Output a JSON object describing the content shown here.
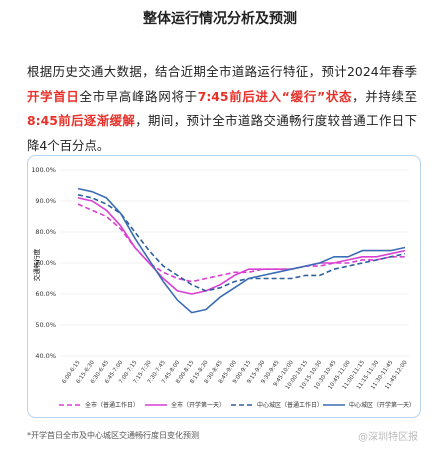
{
  "header": {
    "title": "整体运行情况分析及预测"
  },
  "intro": [
    "根据历史交通大数据，结合近期全市道路运行特征，预计2024年春季",
    "开学首日",
    "全市早高峰路网将于",
    "7:45前后进入“缓行”状态",
    "，并持续至",
    "8:45前后逐渐缓解",
    "，期间，预计全市道路交通畅行度较普通工作日下降4个百分点。"
  ],
  "chart_data": {
    "type": "line",
    "y_label": "交通畅行度",
    "categories": [
      "6:00-6:15",
      "6:15-6:30",
      "6:30-6:45",
      "6:45-7:00",
      "7:00-7:15",
      "7:15-7:30",
      "7:30-7:45",
      "7:45-8:00",
      "8:00-8:15",
      "8:15-8:30",
      "8:30-8:45",
      "8:45-9:00",
      "9:00-9:15",
      "9:15-9:30",
      "9:30-9:45",
      "9:45-10:00",
      "10:00-10:15",
      "10:15-10:30",
      "10:30-10:45",
      "10:45-11:00",
      "11:00-11:15",
      "11:15-11:30",
      "11:30-11:45",
      "11:45-12:00"
    ],
    "ylim": [
      40,
      100
    ],
    "yticks": [
      {
        "value": 40,
        "label": "40.0%"
      },
      {
        "value": 50,
        "label": "50.0%"
      },
      {
        "value": 60,
        "label": "60.0%"
      },
      {
        "value": 70,
        "label": "70.0%"
      },
      {
        "value": 80,
        "label": "80.0%"
      },
      {
        "value": 90,
        "label": "90.0%"
      },
      {
        "value": 100,
        "label": "100.0%"
      }
    ],
    "series": [
      {
        "name": "全市（普通工作日）",
        "color": "#d93fd3",
        "dashed": true,
        "values": [
          89,
          87,
          85,
          81,
          75,
          70,
          67,
          65,
          64,
          65,
          66,
          67,
          67,
          68,
          68,
          68,
          69,
          69,
          70,
          70,
          71,
          71,
          72,
          72
        ]
      },
      {
        "name": "全市（开学第一天）",
        "color": "#d93fd3",
        "dashed": false,
        "values": [
          91,
          90,
          87,
          82,
          75,
          70,
          65,
          61,
          60,
          61,
          63,
          66,
          68,
          68,
          68,
          68,
          69,
          70,
          70,
          71,
          72,
          72,
          73,
          74
        ]
      },
      {
        "name": "中心城区（普通工作日）",
        "color": "#2e5f9e",
        "dashed": true,
        "values": [
          92,
          91,
          89,
          86,
          80,
          74,
          69,
          66,
          63,
          61,
          62,
          64,
          65,
          65,
          65,
          65,
          66,
          66,
          68,
          69,
          70,
          71,
          72,
          73
        ]
      },
      {
        "name": "中心城区（开学第一天）",
        "color": "#3a6db3",
        "dashed": false,
        "values": [
          94,
          93,
          91,
          86,
          78,
          71,
          64,
          58,
          54,
          55,
          59,
          62,
          65,
          66,
          67,
          68,
          69,
          70,
          72,
          72,
          74,
          74,
          74,
          75
        ]
      }
    ]
  },
  "caption": "*开学首日全市及中心城区交通畅行度日变化预测",
  "watermark": "@深圳特区报"
}
